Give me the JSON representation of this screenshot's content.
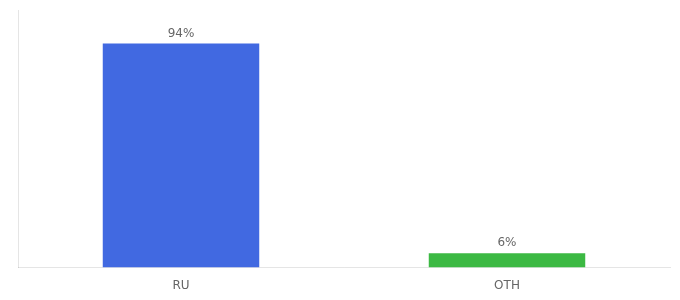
{
  "chart_data": {
    "type": "bar",
    "categories": [
      "RU",
      "OTH"
    ],
    "values": [
      94,
      6
    ],
    "value_labels": [
      "94%",
      "6%"
    ],
    "colors": [
      "#4169e1",
      "#3cb943"
    ],
    "ylim": [
      0,
      108
    ],
    "yticks": [],
    "grid": false,
    "data_labels": true,
    "tick_labels": "x"
  }
}
